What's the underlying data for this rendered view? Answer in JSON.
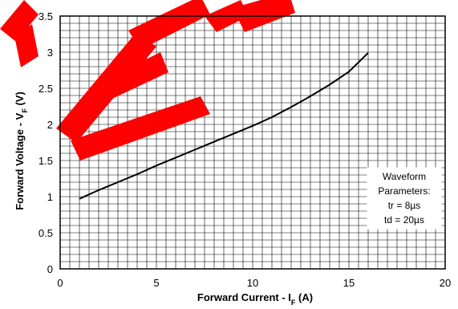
{
  "chart_data": {
    "type": "line",
    "xlabel": {
      "main": "Forward Current - I",
      "sub": "F",
      "unit": " (A)"
    },
    "ylabel": {
      "main": "Forward Voltage - V",
      "sub": "F",
      "unit": " (V)"
    },
    "xlim": [
      0,
      20
    ],
    "ylim": [
      0,
      3.5
    ],
    "x_ticks": [
      "0",
      "5",
      "10",
      "15",
      "20"
    ],
    "y_ticks": [
      "0",
      "0.5",
      "1",
      "1.5",
      "2",
      "2.5",
      "3",
      "3.5"
    ],
    "grid": true,
    "series": [
      {
        "x": [
          1,
          2,
          3,
          4,
          5,
          6,
          7,
          8,
          9,
          10,
          11,
          12,
          13,
          14,
          15,
          16
        ],
        "y": [
          0.97,
          1.09,
          1.2,
          1.31,
          1.43,
          1.54,
          1.65,
          1.76,
          1.87,
          1.98,
          2.1,
          2.24,
          2.39,
          2.55,
          2.73,
          2.99
        ]
      }
    ],
    "annotation": [
      "Waveform",
      "Parameters:",
      "tr = 8µs",
      "td = 20µs"
    ]
  },
  "watermark": {
    "text": "TEC",
    "color": "#ff0000"
  }
}
